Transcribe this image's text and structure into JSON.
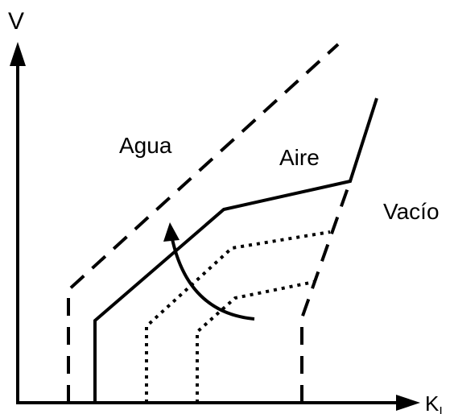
{
  "axes": {
    "y_label": "V",
    "x_label": "K",
    "x_label_subscript": "I"
  },
  "regions": [
    "Agua",
    "Aire",
    "Vacío"
  ]
}
